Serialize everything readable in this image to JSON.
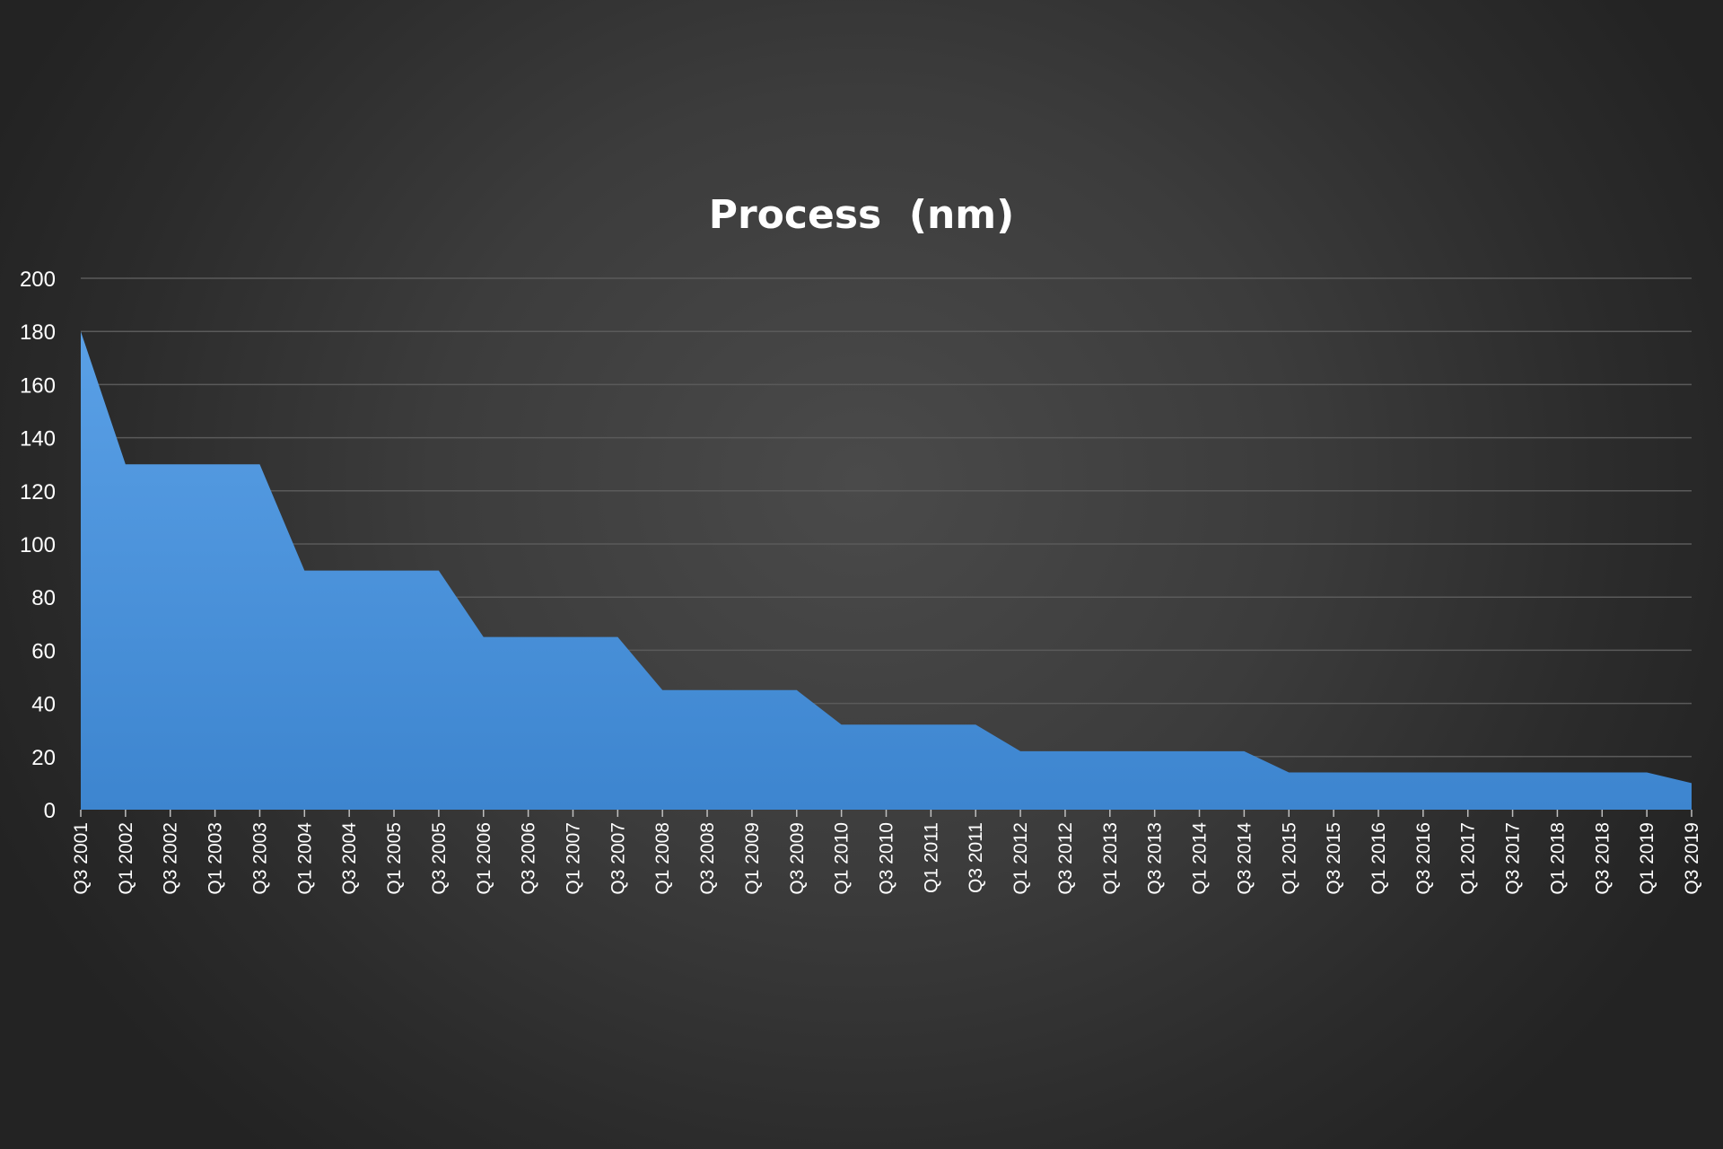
{
  "chart_data": {
    "type": "area",
    "title": "Process  (nm)",
    "xlabel": "",
    "ylabel": "",
    "ylim": [
      0,
      200
    ],
    "yticks": [
      0,
      20,
      40,
      60,
      80,
      100,
      120,
      140,
      160,
      180,
      200
    ],
    "grid": true,
    "legend": "none",
    "fill_color_top": "#5aa0e6",
    "fill_color_bottom": "#3d85cf",
    "categories": [
      "Q3 2001",
      "Q1 2002",
      "Q3 2002",
      "Q1 2003",
      "Q3 2003",
      "Q1 2004",
      "Q3 2004",
      "Q1 2005",
      "Q3 2005",
      "Q1 2006",
      "Q3 2006",
      "Q1 2007",
      "Q3 2007",
      "Q1 2008",
      "Q3 2008",
      "Q1 2009",
      "Q3 2009",
      "Q1 2010",
      "Q3 2010",
      "Q1 2011",
      "Q3 2011",
      "Q1 2012",
      "Q3 2012",
      "Q1 2013",
      "Q3 2013",
      "Q1 2014",
      "Q3 2014",
      "Q1 2015",
      "Q3 2015",
      "Q1 2016",
      "Q3 2016",
      "Q1 2017",
      "Q3 2017",
      "Q1 2018",
      "Q3 2018",
      "Q1 2019",
      "Q3 2019"
    ],
    "values": [
      180,
      130,
      130,
      130,
      130,
      90,
      90,
      90,
      90,
      65,
      65,
      65,
      65,
      45,
      45,
      45,
      45,
      32,
      32,
      32,
      32,
      22,
      22,
      22,
      22,
      22,
      22,
      14,
      14,
      14,
      14,
      14,
      14,
      14,
      14,
      14,
      10
    ]
  }
}
